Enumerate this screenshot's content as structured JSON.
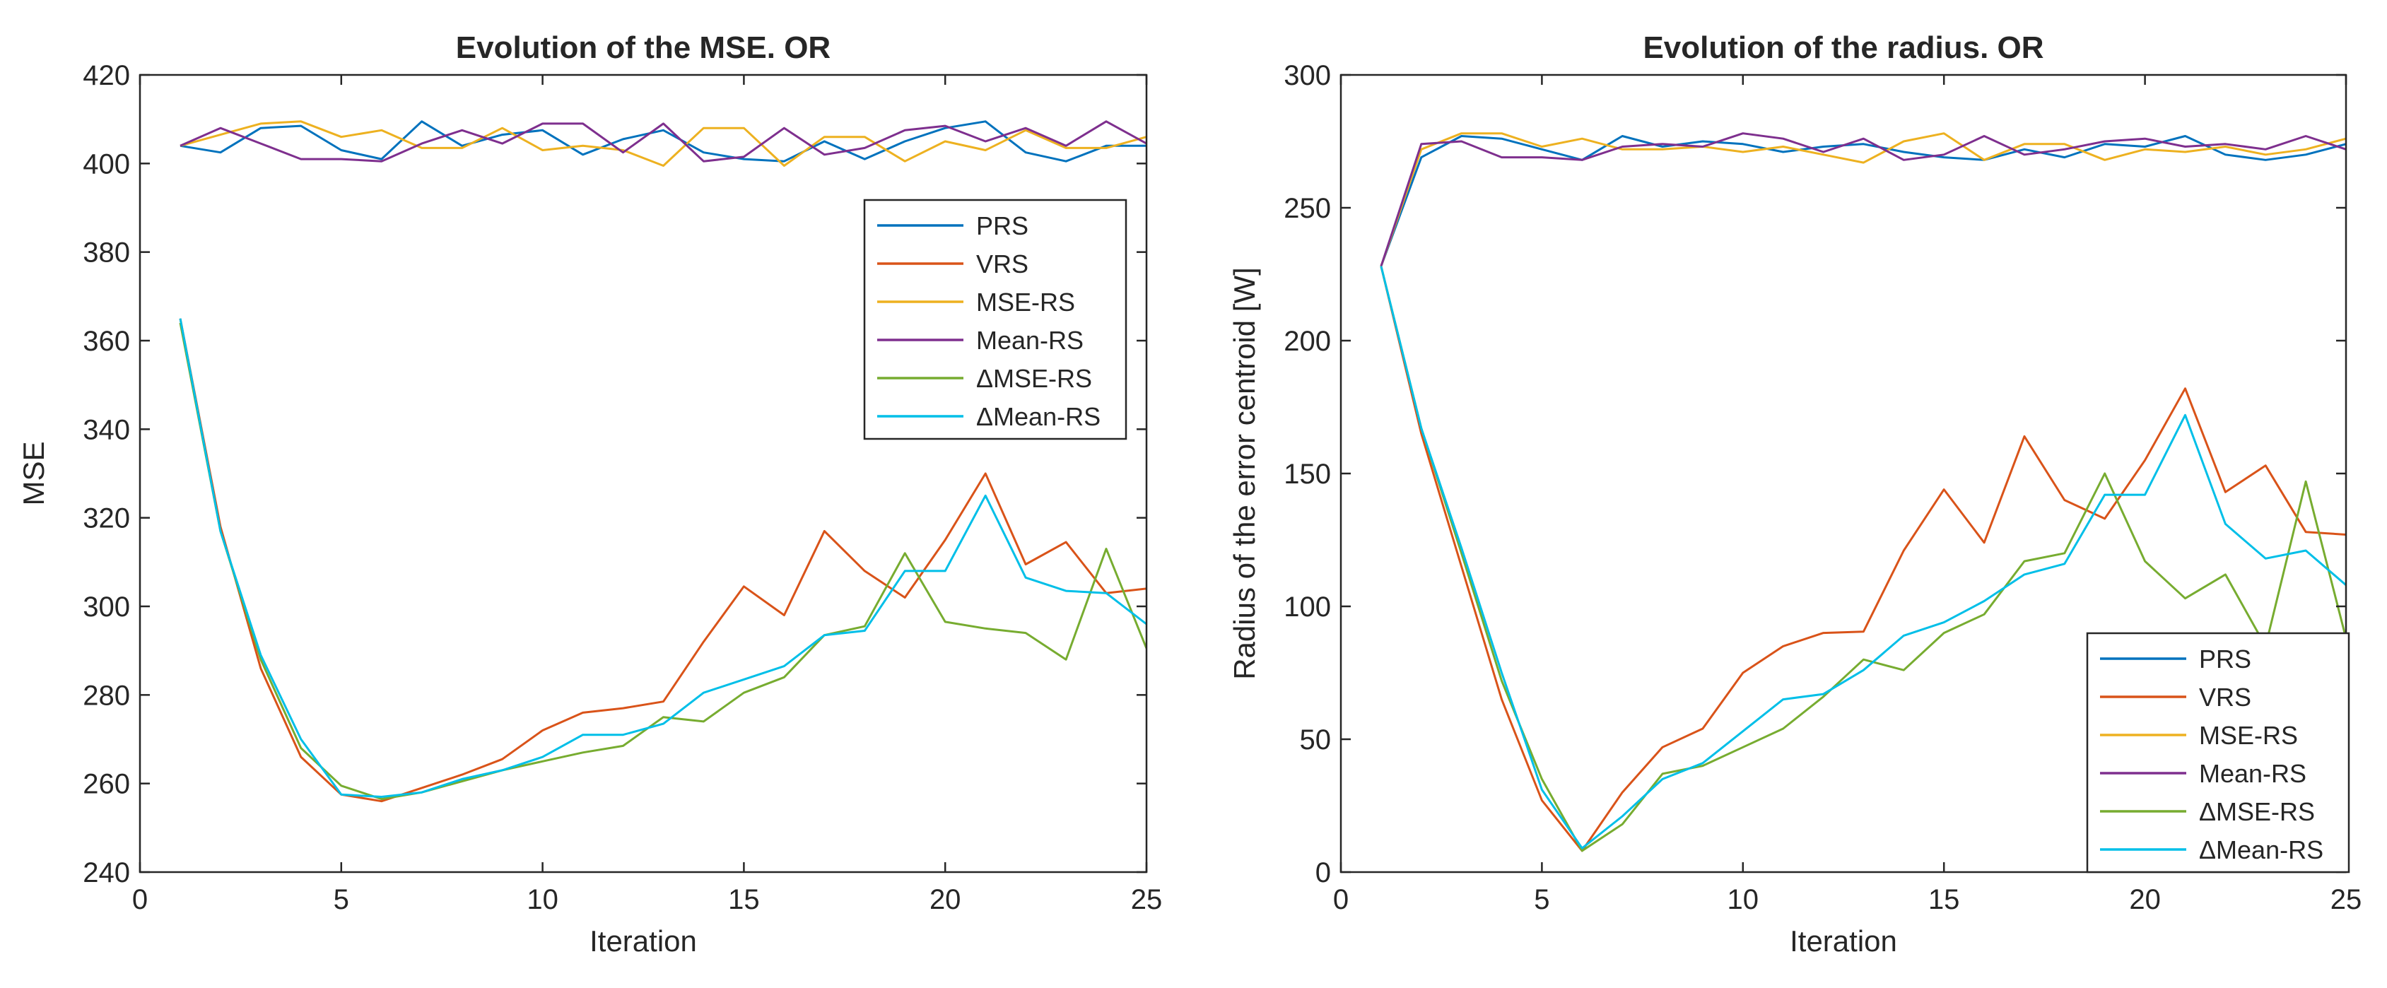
{
  "chart_data": [
    {
      "type": "line",
      "title": "Evolution of the MSE. OR",
      "xlabel": "Iteration",
      "ylabel": "MSE",
      "xlim": [
        0,
        25
      ],
      "ylim": [
        240,
        420
      ],
      "xticks": [
        0,
        5,
        10,
        15,
        20,
        25
      ],
      "yticks": [
        240,
        260,
        280,
        300,
        320,
        340,
        360,
        380,
        400,
        420
      ],
      "legend_position": "upper-right",
      "x": [
        1,
        2,
        3,
        4,
        5,
        6,
        7,
        8,
        9,
        10,
        11,
        12,
        13,
        14,
        15,
        16,
        17,
        18,
        19,
        20,
        21,
        22,
        23,
        24,
        25
      ],
      "series": [
        {
          "name": "PRS",
          "color": "#0072BD",
          "values": [
            404,
            402.5,
            408,
            408.5,
            403,
            401,
            409.5,
            404,
            406.5,
            407.5,
            402,
            405.5,
            407.5,
            402.5,
            401,
            400.5,
            405,
            401,
            405,
            408,
            409.5,
            402.5,
            400.5,
            404,
            404
          ]
        },
        {
          "name": "VRS",
          "color": "#D95319",
          "values": [
            365,
            318,
            286,
            266,
            257.5,
            256,
            259,
            262,
            265.5,
            272,
            276,
            277,
            278.5,
            292,
            304.5,
            298,
            317,
            308,
            302,
            315,
            330,
            309.5,
            314.5,
            303,
            304
          ]
        },
        {
          "name": "MSE-RS",
          "color": "#EDB120",
          "values": [
            404,
            406.5,
            409,
            409.5,
            406,
            407.5,
            403.5,
            403.5,
            408,
            403,
            404,
            403,
            399.5,
            408,
            408,
            399.5,
            406,
            406,
            400.5,
            405,
            403,
            407.5,
            403.5,
            403.5,
            406
          ]
        },
        {
          "name": "Mean-RS",
          "color": "#7E2F8E",
          "values": [
            404,
            408,
            404.5,
            401,
            401,
            400.5,
            404.5,
            407.5,
            404.5,
            409,
            409,
            402.5,
            409,
            400.5,
            401.5,
            408,
            402,
            403.5,
            407.5,
            408.5,
            405,
            408,
            404,
            409.5,
            404.5
          ]
        },
        {
          "name": "ΔMSE-RS",
          "color": "#77AC30",
          "values": [
            364,
            317,
            288,
            268,
            259.5,
            256.5,
            258,
            260.5,
            263,
            265,
            267,
            268.5,
            275,
            274,
            280.5,
            284,
            293.5,
            295.5,
            312,
            296.5,
            295,
            294,
            288,
            313,
            290.5
          ]
        },
        {
          "name": "ΔMean-RS",
          "color": "#00BFE8",
          "values": [
            365,
            317,
            289,
            270,
            257.5,
            257,
            258,
            261,
            263,
            266,
            271,
            271,
            273.5,
            280.5,
            283.5,
            286.5,
            293.5,
            294.5,
            308,
            308,
            325,
            306.5,
            303.5,
            303,
            296
          ]
        }
      ]
    },
    {
      "type": "line",
      "title": "Evolution of the radius. OR",
      "xlabel": "Iteration",
      "ylabel": "Radius of the error centroid [W]",
      "xlim": [
        0,
        25
      ],
      "ylim": [
        0,
        300
      ],
      "xticks": [
        0,
        5,
        10,
        15,
        20,
        25
      ],
      "yticks": [
        0,
        50,
        100,
        150,
        200,
        250,
        300
      ],
      "legend_position": "lower-right",
      "x": [
        1,
        2,
        3,
        4,
        5,
        6,
        7,
        8,
        9,
        10,
        11,
        12,
        13,
        14,
        15,
        16,
        17,
        18,
        19,
        20,
        21,
        22,
        23,
        24,
        25
      ],
      "series": [
        {
          "name": "PRS",
          "color": "#0072BD",
          "values": [
            228,
            269,
            277,
            276,
            272,
            268,
            277,
            273,
            275,
            274,
            271,
            273,
            274,
            271,
            269,
            268,
            272,
            269,
            274,
            273,
            277,
            270,
            268,
            270,
            274
          ]
        },
        {
          "name": "VRS",
          "color": "#D95319",
          "values": [
            228,
            165,
            115,
            65,
            27,
            8,
            30,
            47,
            54,
            75,
            85,
            90,
            90.5,
            121,
            144,
            124,
            164,
            140,
            133,
            155,
            182,
            143,
            153,
            128,
            127
          ]
        },
        {
          "name": "MSE-RS",
          "color": "#EDB120",
          "values": [
            228,
            272,
            278,
            278,
            273,
            276,
            272,
            272,
            273,
            271,
            273,
            270,
            267,
            275,
            278,
            268,
            274,
            274,
            268,
            272,
            271,
            273,
            270,
            272,
            276
          ]
        },
        {
          "name": "Mean-RS",
          "color": "#7E2F8E",
          "values": [
            228,
            274,
            275,
            269,
            269,
            268,
            273,
            274,
            273,
            278,
            276,
            271,
            276,
            268,
            270,
            277,
            270,
            272,
            275,
            276,
            273,
            274,
            272,
            277,
            272
          ]
        },
        {
          "name": "ΔMSE-RS",
          "color": "#77AC30",
          "values": [
            228,
            167,
            120,
            72,
            35,
            8,
            18,
            37,
            40,
            47,
            54,
            66,
            80,
            76,
            90,
            97,
            117,
            120,
            150,
            117,
            103,
            112,
            85,
            147,
            88
          ]
        },
        {
          "name": "ΔMean-RS",
          "color": "#00BFE8",
          "values": [
            228,
            167,
            122,
            75,
            31,
            9,
            21,
            35,
            41,
            53,
            65,
            67,
            76,
            89,
            94,
            102,
            112,
            116,
            142,
            142,
            172,
            131,
            118,
            121,
            108
          ]
        }
      ]
    }
  ]
}
